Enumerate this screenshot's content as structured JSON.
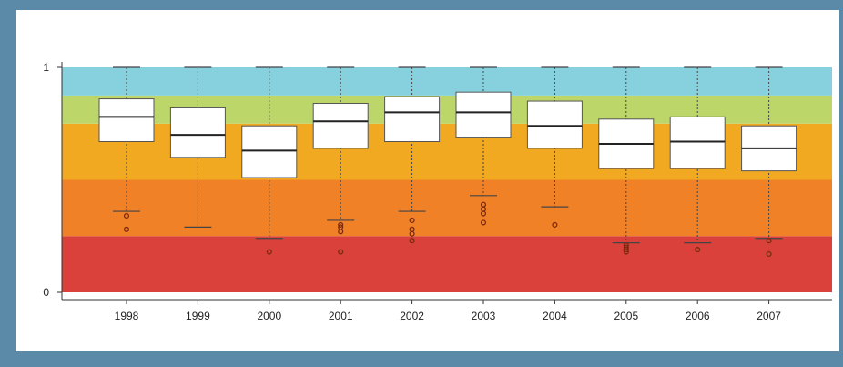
{
  "colors": {
    "background": "#5a8aa8",
    "band_colors": [
      "#d9413a",
      "#f08127",
      "#f2a922",
      "#bcd66a",
      "#86d1dd"
    ],
    "box_fill": "#ffffff",
    "box_stroke": "#555555",
    "median": "#222222",
    "outlier": "#7a2a10"
  },
  "chart_data": {
    "type": "box",
    "title": "",
    "xlabel": "",
    "ylabel": "",
    "ylim": [
      0,
      1
    ],
    "y_ticks": [
      "0",
      "1"
    ],
    "grid": false,
    "legend": "none",
    "bands": [
      {
        "from": 0.0,
        "to": 0.25
      },
      {
        "from": 0.25,
        "to": 0.5
      },
      {
        "from": 0.5,
        "to": 0.75
      },
      {
        "from": 0.75,
        "to": 0.875
      },
      {
        "from": 0.875,
        "to": 1.0
      }
    ],
    "categories": [
      "1998",
      "1999",
      "2000",
      "2001",
      "2002",
      "2003",
      "2004",
      "2005",
      "2006",
      "2007"
    ],
    "boxes": [
      {
        "min": 0.36,
        "q1": 0.67,
        "median": 0.78,
        "q3": 0.86,
        "max": 1.0,
        "outliers": [
          0.34,
          0.28
        ]
      },
      {
        "min": 0.29,
        "q1": 0.6,
        "median": 0.7,
        "q3": 0.82,
        "max": 1.0,
        "outliers": []
      },
      {
        "min": 0.24,
        "q1": 0.51,
        "median": 0.63,
        "q3": 0.74,
        "max": 1.0,
        "outliers": [
          0.18
        ]
      },
      {
        "min": 0.32,
        "q1": 0.64,
        "median": 0.76,
        "q3": 0.84,
        "max": 1.0,
        "outliers": [
          0.3,
          0.29,
          0.27,
          0.18
        ]
      },
      {
        "min": 0.36,
        "q1": 0.67,
        "median": 0.8,
        "q3": 0.87,
        "max": 1.0,
        "outliers": [
          0.32,
          0.28,
          0.26,
          0.23
        ]
      },
      {
        "min": 0.43,
        "q1": 0.69,
        "median": 0.8,
        "q3": 0.89,
        "max": 1.0,
        "outliers": [
          0.39,
          0.37,
          0.35,
          0.31
        ]
      },
      {
        "min": 0.38,
        "q1": 0.64,
        "median": 0.74,
        "q3": 0.85,
        "max": 1.0,
        "outliers": [
          0.3
        ]
      },
      {
        "min": 0.22,
        "q1": 0.55,
        "median": 0.66,
        "q3": 0.77,
        "max": 1.0,
        "outliers": [
          0.21,
          0.2,
          0.19,
          0.18
        ]
      },
      {
        "min": 0.22,
        "q1": 0.55,
        "median": 0.67,
        "q3": 0.78,
        "max": 1.0,
        "outliers": [
          0.19
        ]
      },
      {
        "min": 0.24,
        "q1": 0.54,
        "median": 0.64,
        "q3": 0.74,
        "max": 1.0,
        "outliers": [
          0.23,
          0.17
        ]
      }
    ]
  }
}
